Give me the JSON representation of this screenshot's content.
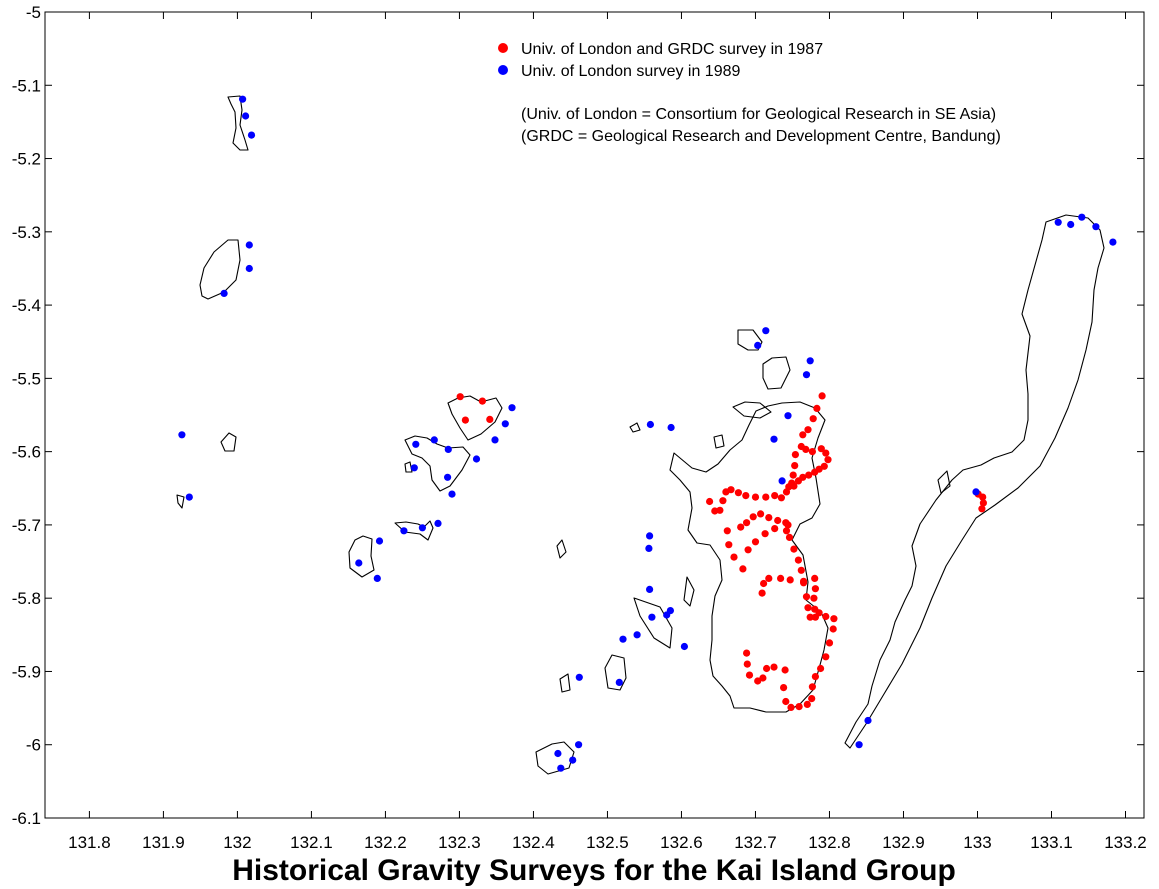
{
  "title": "Historical Gravity Surveys for the Kai Island Group",
  "legend": {
    "entries": [
      {
        "label": "Univ. of London and GRDC survey in 1987",
        "color": "#ff0000"
      },
      {
        "label": "Univ. of London survey in 1989",
        "color": "#0000ff"
      }
    ],
    "notes": [
      "(Univ. of London = Consortium for Geological Research in SE Asia)",
      "(GRDC = Geological Research and Development Centre, Bandung)"
    ]
  },
  "chart_data": {
    "type": "scatter",
    "xlim": [
      131.74,
      133.225
    ],
    "ylim": [
      -6.1,
      -5.0
    ],
    "x_ticks": [
      "131.8",
      "131.9",
      "132",
      "132.1",
      "132.2",
      "132.3",
      "132.4",
      "132.5",
      "132.6",
      "132.7",
      "132.8",
      "132.9",
      "133",
      "133.1",
      "133.2"
    ],
    "y_ticks": [
      "-5",
      "-5.1",
      "-5.2",
      "-5.3",
      "-5.4",
      "-5.5",
      "-5.6",
      "-5.7",
      "-5.8",
      "-5.9",
      "-6",
      "-6.1"
    ],
    "series": [
      {
        "name": "Univ. of London and GRDC survey in 1987",
        "color": "#ff0000",
        "points": [
          [
            132.301,
            -5.525
          ],
          [
            132.308,
            -5.557
          ],
          [
            132.331,
            -5.531
          ],
          [
            132.341,
            -5.556
          ],
          [
            132.79,
            -5.524
          ],
          [
            132.783,
            -5.541
          ],
          [
            132.778,
            -5.555
          ],
          [
            132.771,
            -5.57
          ],
          [
            132.764,
            -5.577
          ],
          [
            132.762,
            -5.593
          ],
          [
            132.754,
            -5.604
          ],
          [
            132.753,
            -5.619
          ],
          [
            132.751,
            -5.632
          ],
          [
            132.749,
            -5.643
          ],
          [
            132.742,
            -5.655
          ],
          [
            132.735,
            -5.663
          ],
          [
            132.726,
            -5.66
          ],
          [
            132.714,
            -5.662
          ],
          [
            132.7,
            -5.662
          ],
          [
            132.687,
            -5.66
          ],
          [
            132.677,
            -5.656
          ],
          [
            132.667,
            -5.652
          ],
          [
            132.66,
            -5.655
          ],
          [
            132.656,
            -5.667
          ],
          [
            132.652,
            -5.68
          ],
          [
            132.645,
            -5.681
          ],
          [
            132.638,
            -5.668
          ],
          [
            132.768,
            -5.597
          ],
          [
            132.777,
            -5.6
          ],
          [
            132.789,
            -5.596
          ],
          [
            132.795,
            -5.602
          ],
          [
            132.798,
            -5.611
          ],
          [
            132.793,
            -5.62
          ],
          [
            132.786,
            -5.624
          ],
          [
            132.78,
            -5.628
          ],
          [
            132.772,
            -5.632
          ],
          [
            132.764,
            -5.635
          ],
          [
            132.758,
            -5.64
          ],
          [
            132.752,
            -5.647
          ],
          [
            132.745,
            -5.648
          ],
          [
            132.662,
            -5.708
          ],
          [
            132.664,
            -5.727
          ],
          [
            132.671,
            -5.744
          ],
          [
            132.683,
            -5.76
          ],
          [
            132.69,
            -5.734
          ],
          [
            132.7,
            -5.723
          ],
          [
            132.713,
            -5.712
          ],
          [
            132.726,
            -5.705
          ],
          [
            132.742,
            -5.708
          ],
          [
            132.744,
            -5.7
          ],
          [
            132.73,
            -5.694
          ],
          [
            132.718,
            -5.69
          ],
          [
            132.707,
            -5.685
          ],
          [
            132.697,
            -5.689
          ],
          [
            132.688,
            -5.697
          ],
          [
            132.68,
            -5.703
          ],
          [
            132.741,
            -5.697
          ],
          [
            132.746,
            -5.717
          ],
          [
            132.752,
            -5.733
          ],
          [
            132.758,
            -5.748
          ],
          [
            132.762,
            -5.762
          ],
          [
            132.765,
            -5.779
          ],
          [
            132.769,
            -5.798
          ],
          [
            132.771,
            -5.813
          ],
          [
            132.774,
            -5.826
          ],
          [
            132.78,
            -5.773
          ],
          [
            132.781,
            -5.787
          ],
          [
            132.779,
            -5.8
          ],
          [
            132.78,
            -5.815
          ],
          [
            132.781,
            -5.826
          ],
          [
            132.786,
            -5.82
          ],
          [
            132.795,
            -5.825
          ],
          [
            132.806,
            -5.828
          ],
          [
            132.709,
            -5.793
          ],
          [
            132.711,
            -5.78
          ],
          [
            132.718,
            -5.773
          ],
          [
            132.734,
            -5.773
          ],
          [
            132.747,
            -5.775
          ],
          [
            132.765,
            -5.777
          ],
          [
            132.805,
            -5.842
          ],
          [
            132.8,
            -5.861
          ],
          [
            132.795,
            -5.88
          ],
          [
            132.788,
            -5.896
          ],
          [
            132.781,
            -5.907
          ],
          [
            132.777,
            -5.921
          ],
          [
            132.776,
            -5.937
          ],
          [
            132.77,
            -5.945
          ],
          [
            132.759,
            -5.948
          ],
          [
            132.748,
            -5.949
          ],
          [
            132.741,
            -5.941
          ],
          [
            132.738,
            -5.922
          ],
          [
            132.74,
            -5.898
          ],
          [
            132.725,
            -5.894
          ],
          [
            132.715,
            -5.896
          ],
          [
            132.71,
            -5.909
          ],
          [
            132.703,
            -5.913
          ],
          [
            132.692,
            -5.905
          ],
          [
            132.689,
            -5.89
          ],
          [
            132.688,
            -5.875
          ],
          [
            133.001,
            -5.658
          ],
          [
            133.007,
            -5.662
          ],
          [
            133.008,
            -5.67
          ],
          [
            133.006,
            -5.678
          ]
        ]
      },
      {
        "name": "Univ. of London survey in 1989",
        "color": "#0000ff",
        "points": [
          [
            132.007,
            -5.119
          ],
          [
            132.011,
            -5.142
          ],
          [
            132.019,
            -5.168
          ],
          [
            132.016,
            -5.318
          ],
          [
            132.016,
            -5.35
          ],
          [
            131.982,
            -5.384
          ],
          [
            131.925,
            -5.577
          ],
          [
            131.935,
            -5.662
          ],
          [
            132.371,
            -5.54
          ],
          [
            132.362,
            -5.562
          ],
          [
            132.348,
            -5.584
          ],
          [
            132.241,
            -5.59
          ],
          [
            132.266,
            -5.584
          ],
          [
            132.285,
            -5.597
          ],
          [
            132.323,
            -5.61
          ],
          [
            132.239,
            -5.622
          ],
          [
            132.284,
            -5.635
          ],
          [
            132.29,
            -5.658
          ],
          [
            132.225,
            -5.708
          ],
          [
            132.25,
            -5.704
          ],
          [
            132.271,
            -5.698
          ],
          [
            132.192,
            -5.722
          ],
          [
            132.164,
            -5.752
          ],
          [
            132.189,
            -5.773
          ],
          [
            132.714,
            -5.435
          ],
          [
            132.703,
            -5.455
          ],
          [
            132.774,
            -5.476
          ],
          [
            132.769,
            -5.495
          ],
          [
            132.744,
            -5.551
          ],
          [
            132.725,
            -5.583
          ],
          [
            132.736,
            -5.64
          ],
          [
            132.558,
            -5.563
          ],
          [
            132.586,
            -5.567
          ],
          [
            132.557,
            -5.715
          ],
          [
            132.556,
            -5.732
          ],
          [
            132.557,
            -5.788
          ],
          [
            132.56,
            -5.826
          ],
          [
            132.585,
            -5.817
          ],
          [
            132.58,
            -5.823
          ],
          [
            132.604,
            -5.866
          ],
          [
            132.521,
            -5.856
          ],
          [
            132.54,
            -5.85
          ],
          [
            132.516,
            -5.915
          ],
          [
            132.462,
            -5.908
          ],
          [
            132.433,
            -6.012
          ],
          [
            132.461,
            -6.0
          ],
          [
            132.453,
            -6.021
          ],
          [
            132.437,
            -6.032
          ],
          [
            132.852,
            -5.967
          ],
          [
            132.84,
            -6.0
          ],
          [
            132.998,
            -5.655
          ],
          [
            133.109,
            -5.287
          ],
          [
            133.126,
            -5.29
          ],
          [
            133.141,
            -5.28
          ],
          [
            133.16,
            -5.293
          ],
          [
            133.183,
            -5.314
          ]
        ]
      }
    ]
  }
}
